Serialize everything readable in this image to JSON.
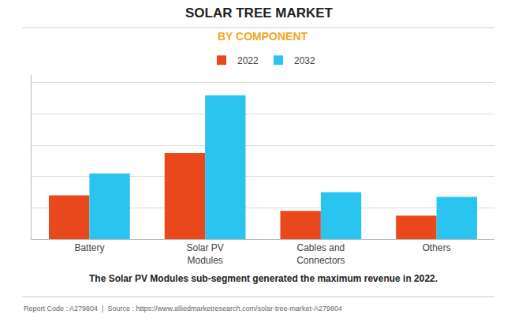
{
  "chart_data": {
    "type": "bar",
    "title": "SOLAR TREE MARKET",
    "subtitle": "BY COMPONENT",
    "annotations": [
      "The Solar PV Modules sub-segment generated the maximum revenue in 2022.",
      "Report Code : A279804  |  Source : https://www.alliedmarketresearch.com/solar-tree-market-A279804"
    ],
    "categories": [
      "Battery",
      "Solar PV\nModules",
      "Cables and\nConnectors",
      "Others"
    ],
    "series": [
      {
        "name": "2022",
        "color": "#E8481C",
        "values": [
          0.28,
          0.55,
          0.18,
          0.15
        ]
      },
      {
        "name": "2032",
        "color": "#29C4F0",
        "values": [
          0.42,
          0.92,
          0.3,
          0.27
        ]
      }
    ],
    "ylim": [
      0,
      1.05
    ],
    "yticks": [
      0,
      0.2,
      0.4,
      0.6,
      0.8,
      1
    ],
    "grid": true,
    "legend": "top",
    "tick_labels": "x"
  }
}
